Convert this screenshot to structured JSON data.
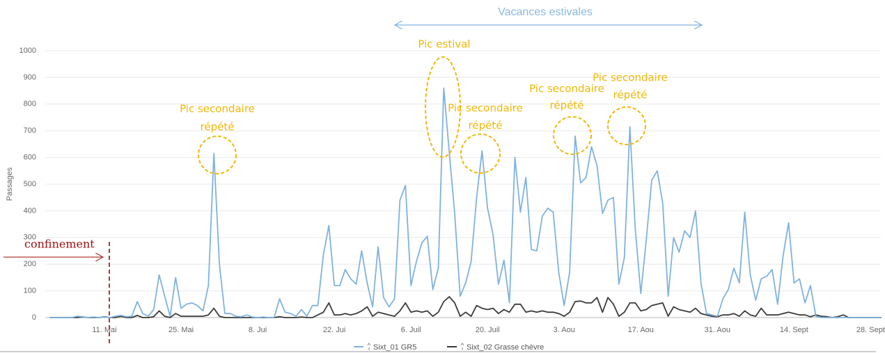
{
  "chart_data": {
    "type": "line",
    "y_label": "Passages",
    "categories": [
      null,
      null,
      null,
      null,
      null,
      null,
      null,
      null,
      null,
      null,
      "11. Mai",
      null,
      null,
      null,
      null,
      null,
      null,
      null,
      null,
      null,
      null,
      null,
      null,
      null,
      "25. Mai",
      null,
      null,
      null,
      null,
      null,
      null,
      null,
      null,
      null,
      null,
      null,
      null,
      null,
      "8. Jui",
      null,
      null,
      null,
      null,
      null,
      null,
      null,
      null,
      null,
      null,
      null,
      null,
      null,
      "22. Jui",
      null,
      null,
      null,
      null,
      null,
      null,
      null,
      null,
      null,
      null,
      null,
      null,
      null,
      "6. Juil",
      null,
      null,
      null,
      null,
      null,
      null,
      null,
      null,
      null,
      null,
      null,
      null,
      null,
      "20. Juil",
      null,
      null,
      null,
      null,
      null,
      null,
      null,
      null,
      null,
      null,
      null,
      null,
      null,
      "3. Aou",
      null,
      null,
      null,
      null,
      null,
      null,
      null,
      null,
      null,
      null,
      null,
      null,
      null,
      "17. Aou",
      null,
      null,
      null,
      null,
      null,
      null,
      null,
      null,
      null,
      null,
      null,
      null,
      null,
      "31. Aou",
      null,
      null,
      null,
      null,
      null,
      null,
      null,
      null,
      null,
      null,
      null,
      null,
      null,
      "14. Sept",
      null,
      null,
      null,
      null,
      null,
      null,
      null,
      null,
      null,
      null,
      null,
      null,
      null,
      "28. Sept",
      null,
      null
    ],
    "series": [
      {
        "name": "Sixt_01 GR5",
        "color": "#7fb2df",
        "values": [
          0,
          0,
          0,
          0,
          0,
          5,
          3,
          0,
          2,
          0,
          2,
          0,
          5,
          8,
          3,
          5,
          60,
          15,
          5,
          30,
          160,
          80,
          5,
          150,
          35,
          50,
          55,
          45,
          25,
          120,
          615,
          200,
          15,
          15,
          5,
          3,
          10,
          2,
          0,
          2,
          0,
          0,
          70,
          20,
          15,
          5,
          30,
          5,
          45,
          45,
          235,
          345,
          120,
          120,
          180,
          145,
          125,
          250,
          130,
          40,
          265,
          75,
          40,
          70,
          440,
          495,
          120,
          210,
          280,
          305,
          105,
          185,
          860,
          620,
          390,
          80,
          130,
          210,
          450,
          625,
          410,
          310,
          125,
          215,
          55,
          600,
          395,
          525,
          255,
          250,
          380,
          410,
          395,
          170,
          45,
          170,
          680,
          505,
          525,
          640,
          570,
          390,
          440,
          450,
          125,
          225,
          715,
          330,
          90,
          290,
          515,
          550,
          430,
          80,
          300,
          245,
          325,
          300,
          400,
          130,
          15,
          10,
          5,
          70,
          105,
          185,
          130,
          395,
          160,
          65,
          145,
          155,
          180,
          50,
          230,
          355,
          130,
          145,
          55,
          120,
          5,
          0,
          0,
          0,
          0,
          0,
          0,
          0,
          0,
          0,
          0,
          0,
          0
        ]
      },
      {
        "name": "Sixt_02 Grasse chèvre",
        "color": "#3a3a3a",
        "values": [
          0,
          0,
          0,
          0,
          0,
          0,
          2,
          0,
          0,
          0,
          3,
          0,
          0,
          5,
          0,
          0,
          8,
          0,
          0,
          3,
          25,
          5,
          0,
          15,
          5,
          5,
          5,
          5,
          5,
          10,
          35,
          5,
          0,
          0,
          0,
          0,
          0,
          0,
          0,
          0,
          0,
          0,
          3,
          0,
          0,
          0,
          2,
          0,
          0,
          10,
          20,
          55,
          10,
          10,
          15,
          10,
          15,
          25,
          40,
          5,
          20,
          15,
          10,
          5,
          25,
          55,
          20,
          25,
          20,
          25,
          5,
          20,
          60,
          78,
          55,
          5,
          20,
          5,
          45,
          35,
          30,
          35,
          15,
          30,
          20,
          50,
          50,
          20,
          25,
          20,
          25,
          20,
          20,
          15,
          5,
          20,
          60,
          62,
          55,
          55,
          75,
          20,
          75,
          50,
          5,
          20,
          55,
          55,
          25,
          30,
          45,
          50,
          55,
          5,
          40,
          30,
          25,
          20,
          35,
          15,
          10,
          5,
          3,
          10,
          10,
          15,
          5,
          25,
          10,
          5,
          35,
          10,
          10,
          10,
          15,
          20,
          15,
          10,
          10,
          3,
          10,
          5,
          3,
          0,
          3,
          10,
          0,
          0,
          0,
          0,
          0,
          0,
          0
        ]
      }
    ],
    "ylim": [
      0,
      1000
    ],
    "yticks": [
      0,
      100,
      200,
      300,
      400,
      500,
      600,
      700,
      800,
      900,
      1000
    ],
    "grid": true,
    "annotations": {
      "vacances": "Vacances estivales",
      "confinement": "confinement",
      "peaks": [
        [
          "Pic secondaire",
          "répété"
        ],
        [
          "Pic estival"
        ],
        [
          "Pic secondaire",
          "répété"
        ],
        [
          "Pic secondaire",
          "répété"
        ],
        [
          "Pic secondaire",
          "répété"
        ]
      ]
    }
  }
}
